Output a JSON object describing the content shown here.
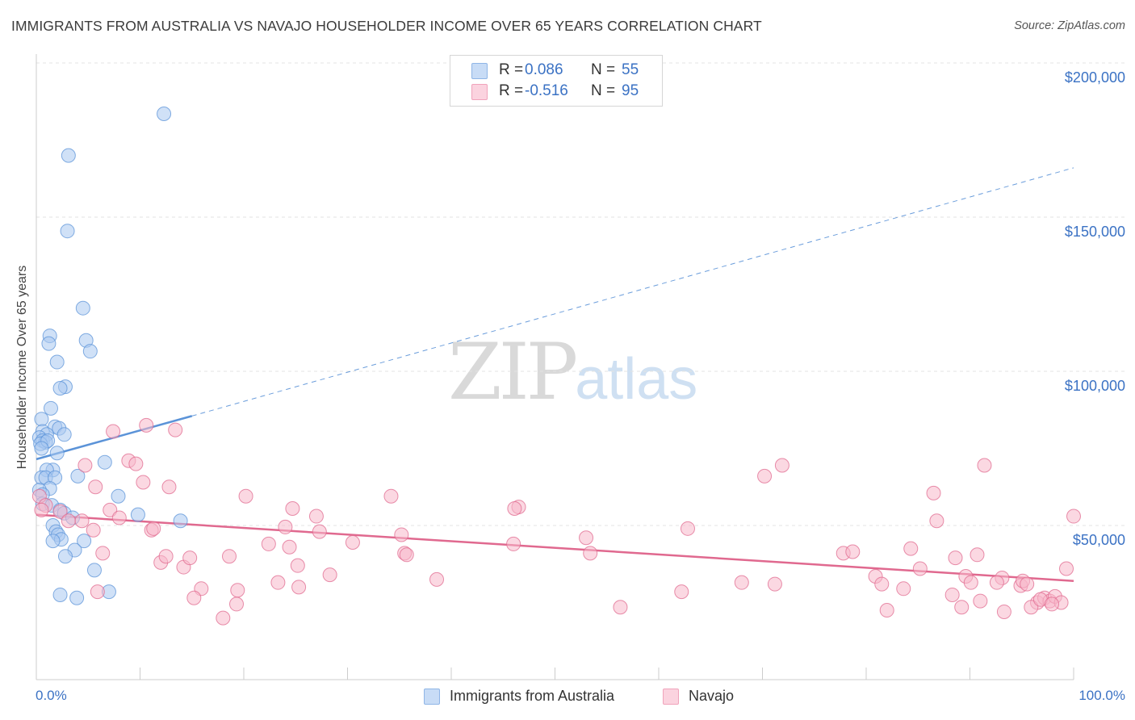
{
  "title": "IMMIGRANTS FROM AUSTRALIA VS NAVAJO HOUSEHOLDER INCOME OVER 65 YEARS CORRELATION CHART",
  "source": "Source: ZipAtlas.com",
  "watermark": {
    "zip": "ZIP",
    "atlas": "atlas"
  },
  "legend": [
    {
      "r_label": "R =",
      "r_value": "0.086",
      "n_label": "N =",
      "n_value": "55",
      "color": "#a9c8f0"
    },
    {
      "r_label": "R =",
      "r_value": "-0.516",
      "n_label": "N =",
      "n_value": "95",
      "color": "#f7b8cb"
    }
  ],
  "bottom_legend": [
    {
      "label": "Immigrants from Australia",
      "color": "#a9c8f0"
    },
    {
      "label": "Navajo",
      "color": "#f7b8cb"
    }
  ],
  "chart_data": {
    "type": "scatter",
    "title": "IMMIGRANTS FROM AUSTRALIA VS NAVAJO HOUSEHOLDER INCOME OVER 65 YEARS CORRELATION CHART",
    "xlabel": "",
    "ylabel": "Householder Income Over 65 years",
    "x_tick_labels": [
      "0.0%",
      "100.0%"
    ],
    "y_tick_labels": [
      "$200,000",
      "$150,000",
      "$100,000",
      "$50,000"
    ],
    "y_ticks": [
      200000,
      150000,
      100000,
      50000
    ],
    "xlim": [
      0,
      100
    ],
    "ylim": [
      0,
      210000
    ],
    "grid": true,
    "series": [
      {
        "name": "Immigrants from Australia",
        "color": "#5b93d8",
        "fill": "#a9c8f0",
        "trend": {
          "x": [
            0,
            15
          ],
          "y": [
            71500,
            85500
          ],
          "extended_to": [
            100,
            166000
          ]
        },
        "points": [
          [
            12.3,
            183500
          ],
          [
            3.1,
            170000
          ],
          [
            3.0,
            145500
          ],
          [
            4.5,
            120500
          ],
          [
            1.3,
            111500
          ],
          [
            4.8,
            110000
          ],
          [
            5.2,
            106500
          ],
          [
            1.2,
            109000
          ],
          [
            2.0,
            103000
          ],
          [
            2.8,
            95000
          ],
          [
            2.3,
            94500
          ],
          [
            1.4,
            88000
          ],
          [
            0.5,
            84500
          ],
          [
            1.8,
            82000
          ],
          [
            2.2,
            81500
          ],
          [
            0.6,
            80500
          ],
          [
            1.0,
            79500
          ],
          [
            2.7,
            79500
          ],
          [
            0.3,
            78500
          ],
          [
            0.6,
            77500
          ],
          [
            0.9,
            77000
          ],
          [
            0.4,
            76500
          ],
          [
            1.1,
            77500
          ],
          [
            0.5,
            75000
          ],
          [
            2.0,
            73500
          ],
          [
            6.6,
            70500
          ],
          [
            1.6,
            68000
          ],
          [
            1.0,
            68000
          ],
          [
            0.5,
            65500
          ],
          [
            0.9,
            65500
          ],
          [
            1.8,
            65500
          ],
          [
            4.0,
            66000
          ],
          [
            1.3,
            62000
          ],
          [
            0.3,
            61500
          ],
          [
            0.6,
            60000
          ],
          [
            7.9,
            59500
          ],
          [
            0.6,
            57000
          ],
          [
            1.5,
            56500
          ],
          [
            2.3,
            55000
          ],
          [
            2.7,
            54000
          ],
          [
            9.8,
            53500
          ],
          [
            3.5,
            52500
          ],
          [
            13.9,
            51500
          ],
          [
            1.6,
            50000
          ],
          [
            1.9,
            48000
          ],
          [
            2.1,
            47000
          ],
          [
            2.4,
            45500
          ],
          [
            1.6,
            45000
          ],
          [
            4.6,
            45000
          ],
          [
            3.7,
            42000
          ],
          [
            2.8,
            40000
          ],
          [
            5.6,
            35500
          ],
          [
            2.3,
            27500
          ],
          [
            3.9,
            26500
          ],
          [
            7.0,
            28500
          ]
        ]
      },
      {
        "name": "Navajo",
        "color": "#e0698f",
        "fill": "#f7b8cb",
        "trend": {
          "x": [
            0,
            100
          ],
          "y": [
            53500,
            32000
          ]
        },
        "points": [
          [
            10.6,
            82500
          ],
          [
            7.4,
            80500
          ],
          [
            13.4,
            81000
          ],
          [
            0.3,
            59500
          ],
          [
            0.9,
            56500
          ],
          [
            0.5,
            55000
          ],
          [
            2.3,
            54500
          ],
          [
            3.1,
            51500
          ],
          [
            4.7,
            69500
          ],
          [
            8.9,
            71000
          ],
          [
            10.3,
            64000
          ],
          [
            12.8,
            62500
          ],
          [
            5.7,
            62500
          ],
          [
            20.2,
            59500
          ],
          [
            34.2,
            59500
          ],
          [
            7.1,
            55000
          ],
          [
            8.0,
            52500
          ],
          [
            4.4,
            51500
          ],
          [
            5.5,
            48500
          ],
          [
            11.1,
            48500
          ],
          [
            11.3,
            49000
          ],
          [
            14.2,
            36500
          ],
          [
            12.0,
            38000
          ],
          [
            12.5,
            40000
          ],
          [
            14.8,
            39500
          ],
          [
            6.4,
            41000
          ],
          [
            18.6,
            40000
          ],
          [
            24.7,
            55500
          ],
          [
            27.0,
            53000
          ],
          [
            24.0,
            49500
          ],
          [
            27.3,
            48000
          ],
          [
            22.4,
            44000
          ],
          [
            24.4,
            43000
          ],
          [
            30.5,
            44500
          ],
          [
            35.5,
            41000
          ],
          [
            35.7,
            40500
          ],
          [
            35.2,
            47000
          ],
          [
            46.5,
            56000
          ],
          [
            46.1,
            55500
          ],
          [
            46.0,
            44000
          ],
          [
            53.0,
            46000
          ],
          [
            53.4,
            41000
          ],
          [
            62.8,
            49000
          ],
          [
            70.2,
            66000
          ],
          [
            71.9,
            69500
          ],
          [
            77.8,
            41000
          ],
          [
            78.7,
            41500
          ],
          [
            80.9,
            33500
          ],
          [
            81.5,
            31000
          ],
          [
            83.6,
            29500
          ],
          [
            84.3,
            42500
          ],
          [
            86.5,
            60500
          ],
          [
            86.8,
            51500
          ],
          [
            85.2,
            36000
          ],
          [
            88.6,
            39500
          ],
          [
            89.6,
            33500
          ],
          [
            90.7,
            40500
          ],
          [
            90.1,
            31500
          ],
          [
            91.4,
            69500
          ],
          [
            93.1,
            33000
          ],
          [
            92.6,
            31500
          ],
          [
            94.9,
            30500
          ],
          [
            95.1,
            32000
          ],
          [
            95.5,
            31000
          ],
          [
            96.5,
            25000
          ],
          [
            97.2,
            26500
          ],
          [
            97.7,
            25500
          ],
          [
            98.2,
            27000
          ],
          [
            98.8,
            25000
          ],
          [
            99.3,
            36000
          ],
          [
            100.0,
            53000
          ],
          [
            15.9,
            29500
          ],
          [
            19.3,
            24500
          ],
          [
            18.0,
            20000
          ],
          [
            23.3,
            31500
          ],
          [
            25.3,
            30000
          ],
          [
            28.3,
            34000
          ],
          [
            38.6,
            32500
          ],
          [
            56.3,
            23500
          ],
          [
            62.2,
            28500
          ],
          [
            68.0,
            31500
          ],
          [
            71.2,
            31000
          ],
          [
            82.0,
            22500
          ],
          [
            88.3,
            27500
          ],
          [
            89.2,
            23500
          ],
          [
            91.0,
            25500
          ],
          [
            93.3,
            22000
          ],
          [
            95.9,
            23500
          ],
          [
            96.8,
            26000
          ],
          [
            97.9,
            24500
          ],
          [
            19.4,
            29000
          ],
          [
            9.6,
            70000
          ],
          [
            15.2,
            26500
          ],
          [
            5.9,
            28500
          ],
          [
            25.2,
            37000
          ]
        ]
      }
    ]
  }
}
